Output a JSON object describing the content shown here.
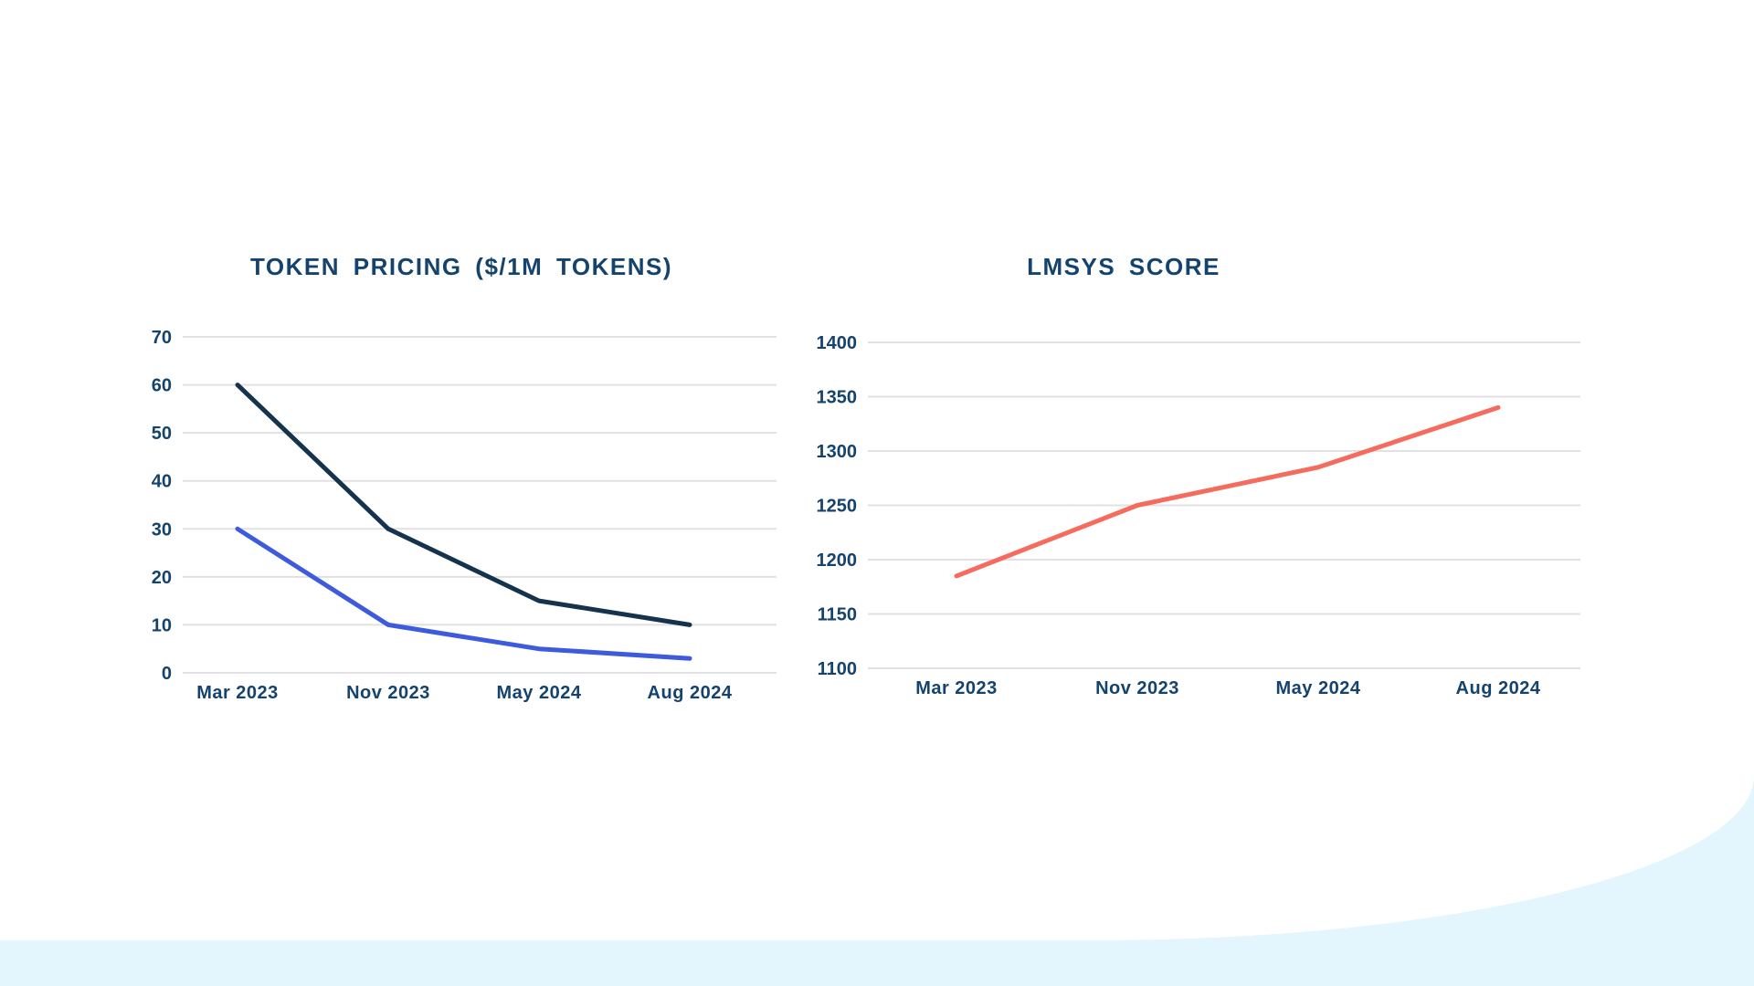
{
  "page": {
    "background": "#ffffff",
    "band_color": "#e3f5fd",
    "text_color": "#14436e",
    "gridline_color": "#e1e1e3"
  },
  "chart_data": [
    {
      "type": "line",
      "title": "TOKEN PRICING ($/1M TOKENS)",
      "categories": [
        "Mar 2023",
        "Nov 2023",
        "May 2024",
        "Aug 2024"
      ],
      "series": [
        {
          "name": "token-price-series-dark",
          "color": "#16334e",
          "values": [
            60,
            30,
            15,
            10
          ]
        },
        {
          "name": "token-price-series-blue",
          "color": "#3d5bdc",
          "values": [
            30,
            10,
            5,
            3
          ]
        }
      ],
      "ylim": [
        0,
        70
      ],
      "yticks": [
        0,
        10,
        20,
        30,
        40,
        50,
        60,
        70
      ],
      "xlabel": "",
      "ylabel": "",
      "grid": true,
      "legend": "none"
    },
    {
      "type": "line",
      "title": "LMSYS SCORE",
      "categories": [
        "Mar 2023",
        "Nov 2023",
        "May 2024",
        "Aug 2024"
      ],
      "series": [
        {
          "name": "lmsys-score-series",
          "color": "#f56b5e",
          "values": [
            1185,
            1250,
            1285,
            1340
          ]
        }
      ],
      "ylim": [
        1100,
        1400
      ],
      "yticks": [
        1100,
        1150,
        1200,
        1250,
        1300,
        1350,
        1400
      ],
      "xlabel": "",
      "ylabel": "",
      "grid": true,
      "legend": "none"
    }
  ]
}
